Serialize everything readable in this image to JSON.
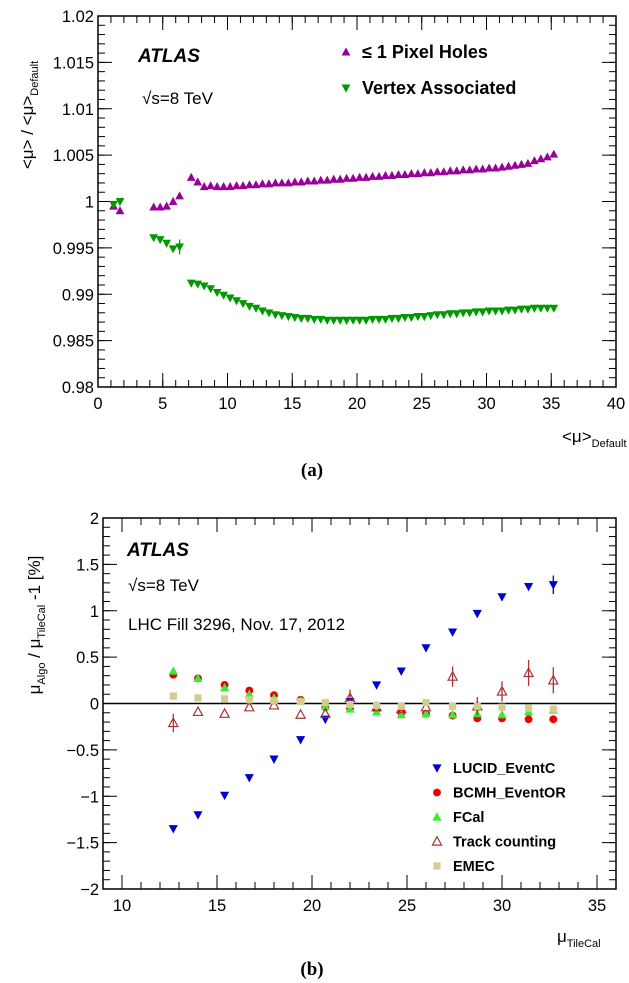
{
  "chart_data": [
    {
      "type": "scatter",
      "caption": "(a)",
      "atlas_label": "ATLAS",
      "info_lines": [
        "√s=8 TeV"
      ],
      "ylabel": "<μ> / <μ>",
      "ylabel_sub": "Default",
      "xlabel": "<μ>",
      "xlabel_sub": "Default",
      "xlim": [
        0,
        40
      ],
      "ylim": [
        0.98,
        1.02
      ],
      "xticks": [
        0,
        5,
        10,
        15,
        20,
        25,
        30,
        35,
        40
      ],
      "yticks": [
        0.98,
        0.985,
        0.99,
        0.995,
        1,
        1.005,
        1.01,
        1.015,
        1.02
      ],
      "ytick_labels": [
        "0.98",
        "0.985",
        "0.99",
        "0.995",
        "1",
        "1.005",
        "1.01",
        "1.015",
        "1.02"
      ],
      "legend_position": "top-right",
      "series": [
        {
          "name": "≤ 1 Pixel Holes",
          "marker": "triangle-up",
          "color": "#990099",
          "points": [
            [
              1.2,
              0.9995
            ],
            [
              1.7,
              0.999
            ],
            [
              4.3,
              0.9994
            ],
            [
              4.8,
              0.9994
            ],
            [
              5.3,
              0.9995
            ],
            [
              5.8,
              1.0
            ],
            [
              6.3,
              1.0006
            ],
            [
              7.2,
              1.0026
            ],
            [
              7.7,
              1.0021
            ],
            [
              8.2,
              1.0016
            ],
            [
              8.7,
              1.0017
            ],
            [
              9.2,
              1.0016
            ],
            [
              9.7,
              1.0016
            ],
            [
              10.2,
              1.0016
            ],
            [
              10.7,
              1.0017
            ],
            [
              11.2,
              1.0017
            ],
            [
              11.7,
              1.0018
            ],
            [
              12.2,
              1.0018
            ],
            [
              12.7,
              1.0019
            ],
            [
              13.2,
              1.0019
            ],
            [
              13.7,
              1.002
            ],
            [
              14.2,
              1.002
            ],
            [
              14.7,
              1.002
            ],
            [
              15.2,
              1.0021
            ],
            [
              15.7,
              1.0021
            ],
            [
              16.2,
              1.0022
            ],
            [
              16.7,
              1.0022
            ],
            [
              17.2,
              1.0023
            ],
            [
              17.7,
              1.0023
            ],
            [
              18.2,
              1.0024
            ],
            [
              18.7,
              1.0024
            ],
            [
              19.2,
              1.0025
            ],
            [
              19.7,
              1.0025
            ],
            [
              20.2,
              1.0026
            ],
            [
              20.7,
              1.0026
            ],
            [
              21.2,
              1.0027
            ],
            [
              21.7,
              1.0027
            ],
            [
              22.2,
              1.0028
            ],
            [
              22.7,
              1.0028
            ],
            [
              23.2,
              1.0029
            ],
            [
              23.7,
              1.0029
            ],
            [
              24.2,
              1.003
            ],
            [
              24.7,
              1.003
            ],
            [
              25.2,
              1.0031
            ],
            [
              25.7,
              1.0031
            ],
            [
              26.2,
              1.0032
            ],
            [
              26.7,
              1.0032
            ],
            [
              27.2,
              1.0033
            ],
            [
              27.7,
              1.0033
            ],
            [
              28.2,
              1.0034
            ],
            [
              28.7,
              1.0034
            ],
            [
              29.2,
              1.0035
            ],
            [
              29.7,
              1.0035
            ],
            [
              30.2,
              1.0036
            ],
            [
              30.7,
              1.0036
            ],
            [
              31.2,
              1.0037
            ],
            [
              31.7,
              1.0038
            ],
            [
              32.2,
              1.0039
            ],
            [
              32.7,
              1.004
            ],
            [
              33.2,
              1.0041
            ],
            [
              33.7,
              1.0044
            ],
            [
              34.2,
              1.0046
            ],
            [
              34.7,
              1.0048
            ],
            [
              35.2,
              1.0051
            ]
          ],
          "errors": []
        },
        {
          "name": "Vertex Associated",
          "marker": "triangle-down",
          "color": "#009900",
          "points": [
            [
              1.2,
              0.9997
            ],
            [
              1.7,
              1.0
            ],
            [
              4.3,
              0.9961
            ],
            [
              4.8,
              0.9959
            ],
            [
              5.3,
              0.9955
            ],
            [
              5.8,
              0.9949
            ],
            [
              6.3,
              0.9951
            ],
            [
              7.2,
              0.9912
            ],
            [
              7.7,
              0.9911
            ],
            [
              8.2,
              0.9909
            ],
            [
              8.7,
              0.9906
            ],
            [
              9.2,
              0.9902
            ],
            [
              9.7,
              0.9899
            ],
            [
              10.2,
              0.9896
            ],
            [
              10.7,
              0.9893
            ],
            [
              11.2,
              0.989
            ],
            [
              11.7,
              0.9887
            ],
            [
              12.2,
              0.9885
            ],
            [
              12.7,
              0.9882
            ],
            [
              13.2,
              0.988
            ],
            [
              13.7,
              0.9878
            ],
            [
              14.2,
              0.9877
            ],
            [
              14.7,
              0.9876
            ],
            [
              15.2,
              0.9875
            ],
            [
              15.7,
              0.9874
            ],
            [
              16.2,
              0.9874
            ],
            [
              16.7,
              0.9873
            ],
            [
              17.2,
              0.9873
            ],
            [
              17.7,
              0.9872
            ],
            [
              18.2,
              0.9872
            ],
            [
              18.7,
              0.9872
            ],
            [
              19.2,
              0.9872
            ],
            [
              19.7,
              0.9872
            ],
            [
              20.2,
              0.9872
            ],
            [
              20.7,
              0.9872
            ],
            [
              21.2,
              0.9873
            ],
            [
              21.7,
              0.9873
            ],
            [
              22.2,
              0.9873
            ],
            [
              22.7,
              0.9874
            ],
            [
              23.2,
              0.9874
            ],
            [
              23.7,
              0.9875
            ],
            [
              24.2,
              0.9875
            ],
            [
              24.7,
              0.9876
            ],
            [
              25.2,
              0.9876
            ],
            [
              25.7,
              0.9877
            ],
            [
              26.2,
              0.9878
            ],
            [
              26.7,
              0.9878
            ],
            [
              27.2,
              0.9879
            ],
            [
              27.7,
              0.9879
            ],
            [
              28.2,
              0.988
            ],
            [
              28.7,
              0.988
            ],
            [
              29.2,
              0.9881
            ],
            [
              29.7,
              0.9881
            ],
            [
              30.2,
              0.9882
            ],
            [
              30.7,
              0.9882
            ],
            [
              31.2,
              0.9882
            ],
            [
              31.7,
              0.9883
            ],
            [
              32.2,
              0.9883
            ],
            [
              32.7,
              0.9884
            ],
            [
              33.2,
              0.9884
            ],
            [
              33.7,
              0.9885
            ],
            [
              34.2,
              0.9885
            ],
            [
              34.7,
              0.9885
            ],
            [
              35.2,
              0.9885
            ]
          ],
          "errors": [
            [
              6.3,
              0.0008
            ]
          ]
        }
      ]
    },
    {
      "type": "scatter",
      "caption": "(b)",
      "atlas_label": "ATLAS",
      "info_lines": [
        "√s=8 TeV",
        "LHC Fill 3296, Nov. 17, 2012"
      ],
      "ylabel": "μ / μ -1 [%]",
      "ylabel_parts": [
        "μ",
        "Algo",
        " / μ",
        "TileCal",
        " -1 [%]"
      ],
      "xlabel": "μ",
      "xlabel_sub": "TileCal",
      "xlim": [
        9,
        36
      ],
      "ylim": [
        -2,
        2
      ],
      "xticks": [
        10,
        15,
        20,
        25,
        30,
        35
      ],
      "yticks": [
        -2,
        -1.5,
        -1,
        -0.5,
        0,
        0.5,
        1,
        1.5,
        2
      ],
      "ytick_labels": [
        "−2",
        "−1.5",
        "−1",
        "−0.5",
        "0",
        "0.5",
        "1",
        "1.5",
        "2"
      ],
      "zero_line": true,
      "legend_position": "bottom-right",
      "series": [
        {
          "name": "LUCID_EventC",
          "marker": "triangle-down",
          "color": "#0000cc",
          "x": [
            12.7,
            14.0,
            15.4,
            16.7,
            18.0,
            19.4,
            20.7,
            22.0,
            23.4,
            24.7,
            26.0,
            27.4,
            28.7,
            30.0,
            31.4,
            32.7
          ],
          "values": [
            -1.35,
            -1.2,
            -0.99,
            -0.8,
            -0.6,
            -0.39,
            -0.17,
            0.02,
            0.2,
            0.35,
            0.6,
            0.77,
            0.97,
            1.15,
            1.26,
            1.28
          ],
          "errors": [
            [
              32.7,
              0.1
            ]
          ]
        },
        {
          "name": "BCMH_EventOR",
          "marker": "circle",
          "color": "#ee0000",
          "x": [
            12.7,
            14.0,
            15.4,
            16.7,
            18.0,
            19.4,
            20.7,
            22.0,
            23.4,
            24.7,
            26.0,
            27.4,
            28.7,
            30.0,
            31.4,
            32.7
          ],
          "values": [
            0.31,
            0.27,
            0.2,
            0.14,
            0.09,
            0.04,
            -0.04,
            -0.05,
            -0.06,
            -0.1,
            -0.11,
            -0.13,
            -0.16,
            -0.16,
            -0.17,
            -0.17
          ],
          "errors": []
        },
        {
          "name": "FCal",
          "marker": "triangle-up",
          "color": "#33ee33",
          "x": [
            12.7,
            14.0,
            15.4,
            16.7,
            18.0,
            19.4,
            20.7,
            22.0,
            23.4,
            24.7,
            26.0,
            27.4,
            28.7,
            30.0,
            31.4,
            32.7
          ],
          "values": [
            0.35,
            0.27,
            0.17,
            0.1,
            0.06,
            0.03,
            -0.03,
            -0.06,
            -0.09,
            -0.12,
            -0.11,
            -0.12,
            -0.11,
            -0.12,
            -0.09,
            -0.07
          ],
          "errors": []
        },
        {
          "name": "Track counting",
          "marker": "open-triangle-up",
          "color": "#aa3333",
          "x": [
            12.7,
            14.0,
            15.4,
            16.7,
            18.0,
            19.4,
            20.7,
            22.0,
            23.4,
            24.7,
            26.0,
            27.4,
            28.7,
            30.0,
            31.4,
            32.7
          ],
          "values": [
            -0.21,
            -0.09,
            -0.11,
            -0.04,
            -0.02,
            -0.12,
            -0.11,
            0.06,
            -0.04,
            -0.06,
            -0.04,
            0.29,
            -0.03,
            0.13,
            0.33,
            0.25
          ],
          "errors": [
            [
              12.7,
              0.1
            ],
            [
              22.0,
              0.09
            ],
            [
              27.4,
              0.11
            ],
            [
              28.7,
              0.1
            ],
            [
              30.0,
              0.11
            ],
            [
              31.4,
              0.14
            ],
            [
              32.7,
              0.14
            ]
          ]
        },
        {
          "name": "EMEC",
          "marker": "square",
          "color": "#d6cc8f",
          "x": [
            12.7,
            14.0,
            15.4,
            16.7,
            18.0,
            19.4,
            20.7,
            22.0,
            23.4,
            24.7,
            26.0,
            27.4,
            28.7,
            30.0,
            31.4,
            32.7
          ],
          "values": [
            0.08,
            0.06,
            0.05,
            0.04,
            0.03,
            0.02,
            0.01,
            -0.01,
            -0.02,
            -0.03,
            0.01,
            -0.03,
            -0.03,
            -0.04,
            -0.05,
            -0.06
          ],
          "errors": []
        }
      ]
    }
  ]
}
